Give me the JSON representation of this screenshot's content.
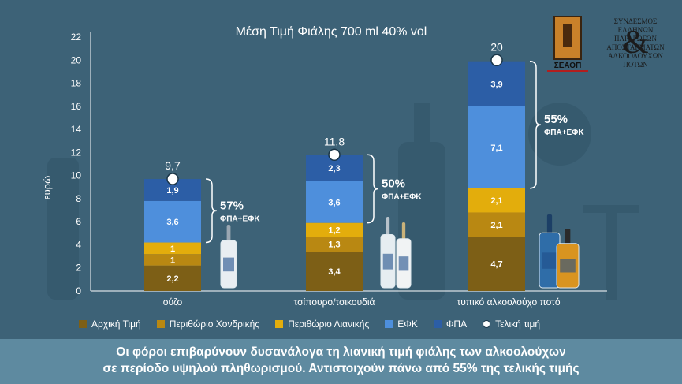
{
  "chart_data": {
    "type": "bar",
    "title": "Μέση Τιμή Φιάλης 700 ml  40% vol",
    "ylabel": "ευρώ",
    "ylim": [
      0,
      22
    ],
    "yticks": [
      "0",
      "2",
      "4",
      "6",
      "8",
      "10",
      "12",
      "14",
      "16",
      "18",
      "20",
      "22"
    ],
    "categories": [
      "ούζο",
      "τσίπουρο/τσικουδιά",
      "τυπικό αλκοολούχο ποτό"
    ],
    "series": [
      {
        "name": "Αρχική Τιμή",
        "color": "#7d5f16",
        "values": [
          2.2,
          3.4,
          4.7
        ],
        "labels": [
          "2,2",
          "3,4",
          "4,7"
        ]
      },
      {
        "name": "Περιθώριο Χονδρικής",
        "color": "#b98812",
        "values": [
          1,
          1.3,
          2.1
        ],
        "labels": [
          "1",
          "1,3",
          "2,1"
        ]
      },
      {
        "name": "Περιθώριο Λιανικής",
        "color": "#e3ad0c",
        "values": [
          1,
          1.2,
          2.1
        ],
        "labels": [
          "1",
          "1,2",
          "2,1"
        ]
      },
      {
        "name": "ΕΦΚ",
        "color": "#4e8fdc",
        "values": [
          3.6,
          3.6,
          7.1
        ],
        "labels": [
          "3,6",
          "3,6",
          "7,1"
        ]
      },
      {
        "name": "ΦΠΑ",
        "color": "#2c5ea6",
        "values": [
          1.9,
          2.3,
          3.9
        ],
        "labels": [
          "1,9",
          "2,3",
          "3,9"
        ]
      }
    ],
    "final_price": {
      "name": "Τελική τιμή",
      "values": [
        9.7,
        11.8,
        20
      ],
      "labels": [
        "9,7",
        "11,8",
        "20"
      ]
    },
    "tax_share": {
      "values": [
        "57%",
        "50%",
        "55%"
      ],
      "caption": "ΦΠΑ+ΕΦΚ"
    },
    "grid": false,
    "legend_position": "bottom"
  },
  "logo": {
    "text_lines": [
      "ΣΥΝΔΕΣΜΟΣ",
      "ΕΛΛΗΝΩΝ ΠΑΡΑΓΩΓΩΝ",
      "ΑΠΟΣΤΑΓΜΑΤΩΝ",
      "ΑΛΚΟΟΛΟΥΧΩΝ",
      "ΠΟΤΩΝ"
    ],
    "ampersand": "&",
    "abbr": "ΣΕΑΟΠ"
  },
  "banner": {
    "line1": "Οι φόροι επιβαρύνουν δυσανάλογα τη λιανική τιμή φιάλης των αλκοολούχων",
    "line2": "σε περίοδο υψηλού πληθωρισμού. Αντιστοιχούν πάνω από 55% της τελικής τιμής"
  }
}
